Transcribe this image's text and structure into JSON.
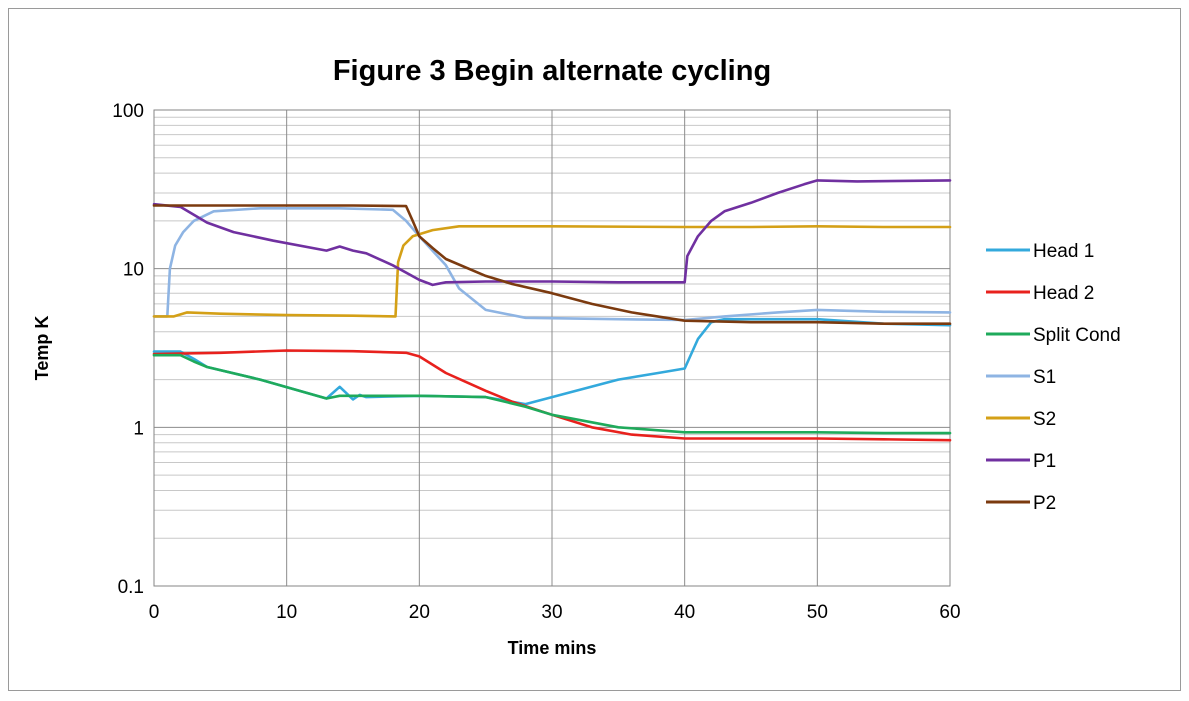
{
  "chart_data": {
    "type": "line",
    "title": "Figure 3 Begin alternate cycling",
    "xlabel": "Time mins",
    "ylabel": "Temp K",
    "xlim": [
      0,
      60
    ],
    "ylim": [
      0.1,
      100
    ],
    "yscale": "log",
    "xticks": [
      "0",
      "10",
      "20",
      "30",
      "40",
      "50",
      "60"
    ],
    "yticks": [
      "0.1",
      "1",
      "10",
      "100"
    ],
    "grid": true,
    "legend_position": "right",
    "series": [
      {
        "name": "Head 1",
        "color": "#33a9dc",
        "points": [
          [
            0,
            3.0
          ],
          [
            2,
            3.0
          ],
          [
            3,
            2.7
          ],
          [
            4,
            2.4
          ],
          [
            8,
            2.0
          ],
          [
            13,
            1.52
          ],
          [
            14,
            1.8
          ],
          [
            15,
            1.5
          ],
          [
            15.5,
            1.6
          ],
          [
            16,
            1.55
          ],
          [
            20,
            1.58
          ],
          [
            25,
            1.55
          ],
          [
            28,
            1.4
          ],
          [
            30,
            1.55
          ],
          [
            35,
            2.0
          ],
          [
            38,
            2.2
          ],
          [
            40,
            2.35
          ],
          [
            41,
            3.6
          ],
          [
            42,
            4.6
          ],
          [
            43,
            4.8
          ],
          [
            50,
            4.8
          ],
          [
            55,
            4.5
          ],
          [
            60,
            4.4
          ]
        ]
      },
      {
        "name": "Head 2",
        "color": "#e8211d",
        "points": [
          [
            0,
            2.9
          ],
          [
            5,
            2.95
          ],
          [
            10,
            3.05
          ],
          [
            15,
            3.02
          ],
          [
            19,
            2.95
          ],
          [
            20,
            2.8
          ],
          [
            22,
            2.2
          ],
          [
            25,
            1.7
          ],
          [
            27,
            1.45
          ],
          [
            30,
            1.2
          ],
          [
            33,
            1.0
          ],
          [
            36,
            0.9
          ],
          [
            40,
            0.85
          ],
          [
            45,
            0.85
          ],
          [
            50,
            0.85
          ],
          [
            55,
            0.84
          ],
          [
            60,
            0.83
          ]
        ]
      },
      {
        "name": "Split Cond",
        "color": "#1faa5b",
        "points": [
          [
            0,
            2.85
          ],
          [
            2,
            2.85
          ],
          [
            3,
            2.6
          ],
          [
            4,
            2.4
          ],
          [
            8,
            2.0
          ],
          [
            13,
            1.52
          ],
          [
            14,
            1.58
          ],
          [
            20,
            1.58
          ],
          [
            25,
            1.55
          ],
          [
            28,
            1.35
          ],
          [
            30,
            1.2
          ],
          [
            35,
            1.0
          ],
          [
            40,
            0.93
          ],
          [
            45,
            0.93
          ],
          [
            50,
            0.93
          ],
          [
            55,
            0.92
          ],
          [
            60,
            0.92
          ]
        ]
      },
      {
        "name": "S1",
        "color": "#8eb4e3",
        "points": [
          [
            0,
            5.0
          ],
          [
            1,
            5.0
          ],
          [
            1.2,
            10.0
          ],
          [
            1.6,
            14.0
          ],
          [
            2.2,
            17.0
          ],
          [
            3,
            20.0
          ],
          [
            4.5,
            23.0
          ],
          [
            8,
            24.0
          ],
          [
            14,
            24.0
          ],
          [
            18,
            23.5
          ],
          [
            19,
            20.0
          ],
          [
            20,
            16.0
          ],
          [
            22,
            10.5
          ],
          [
            23,
            7.5
          ],
          [
            25,
            5.5
          ],
          [
            28,
            4.9
          ],
          [
            35,
            4.8
          ],
          [
            40,
            4.75
          ],
          [
            43,
            5.0
          ],
          [
            47,
            5.3
          ],
          [
            50,
            5.5
          ],
          [
            55,
            5.35
          ],
          [
            60,
            5.3
          ]
        ]
      },
      {
        "name": "S2",
        "color": "#d4a017",
        "points": [
          [
            0,
            5.0
          ],
          [
            1.5,
            5.0
          ],
          [
            2.5,
            5.3
          ],
          [
            5,
            5.2
          ],
          [
            10,
            5.1
          ],
          [
            15,
            5.05
          ],
          [
            18.2,
            5.0
          ],
          [
            18.4,
            11.0
          ],
          [
            18.8,
            14.0
          ],
          [
            19.5,
            16.0
          ],
          [
            21,
            17.5
          ],
          [
            23,
            18.5
          ],
          [
            30,
            18.5
          ],
          [
            40,
            18.3
          ],
          [
            45,
            18.3
          ],
          [
            50,
            18.5
          ],
          [
            55,
            18.3
          ],
          [
            60,
            18.3
          ]
        ]
      },
      {
        "name": "P1",
        "color": "#7030a0",
        "points": [
          [
            0,
            25.5
          ],
          [
            2,
            24.5
          ],
          [
            4,
            19.5
          ],
          [
            6,
            17.0
          ],
          [
            9,
            15.0
          ],
          [
            13,
            13.0
          ],
          [
            14,
            13.8
          ],
          [
            15,
            13.0
          ],
          [
            16,
            12.5
          ],
          [
            18,
            10.5
          ],
          [
            20,
            8.5
          ],
          [
            21,
            7.9
          ],
          [
            22,
            8.2
          ],
          [
            25,
            8.3
          ],
          [
            30,
            8.3
          ],
          [
            35,
            8.2
          ],
          [
            40,
            8.2
          ],
          [
            40.2,
            12.0
          ],
          [
            41,
            16.0
          ],
          [
            42,
            20.0
          ],
          [
            43,
            23.0
          ],
          [
            45,
            26.0
          ],
          [
            47,
            30.0
          ],
          [
            49,
            34.0
          ],
          [
            50,
            36.0
          ],
          [
            53,
            35.5
          ],
          [
            60,
            36.0
          ]
        ]
      },
      {
        "name": "P2",
        "color": "#7b3a0f",
        "points": [
          [
            0,
            25.0
          ],
          [
            5,
            25.0
          ],
          [
            10,
            25.0
          ],
          [
            15,
            25.0
          ],
          [
            19,
            24.8
          ],
          [
            19.5,
            20.0
          ],
          [
            20,
            16.0
          ],
          [
            21,
            13.5
          ],
          [
            22,
            11.5
          ],
          [
            25,
            9.0
          ],
          [
            27,
            8.0
          ],
          [
            30,
            7.0
          ],
          [
            33,
            6.0
          ],
          [
            36,
            5.3
          ],
          [
            40,
            4.7
          ],
          [
            45,
            4.6
          ],
          [
            50,
            4.6
          ],
          [
            55,
            4.5
          ],
          [
            60,
            4.5
          ]
        ]
      }
    ]
  }
}
